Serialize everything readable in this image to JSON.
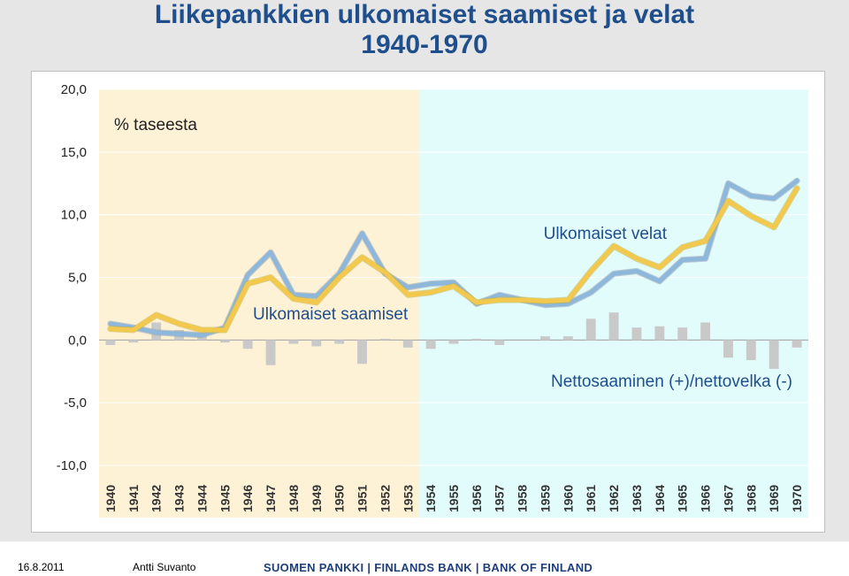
{
  "title": {
    "line1": "Liikepankkien ulkomaiset saamiset ja velat",
    "line2": "1940-1970"
  },
  "footer": {
    "date": "16.8.2011",
    "author": "Antti Suvanto",
    "bank": "SUOMEN PANKKI | FINLANDS BANK | BANK OF FINLAND"
  },
  "chart_data": {
    "type": "line",
    "unit_label": "% taseesta",
    "x": [
      "1940",
      "1941",
      "1942",
      "1943",
      "1944",
      "1945",
      "1946",
      "1947",
      "1948",
      "1949",
      "1950",
      "1951",
      "1952",
      "1953",
      "1954",
      "1955",
      "1956",
      "1957",
      "1958",
      "1959",
      "1960",
      "1961",
      "1962",
      "1963",
      "1964",
      "1965",
      "1966",
      "1967",
      "1968",
      "1969",
      "1970"
    ],
    "ylim": [
      -10,
      20
    ],
    "yticks": [
      "20,0",
      "15,0",
      "10,0",
      "5,0",
      "0,0",
      "-5,0",
      "-10,0"
    ],
    "ytick_values": [
      20,
      15,
      10,
      5,
      0,
      -5,
      -10
    ],
    "shaded_periods": [
      {
        "from": "1940",
        "to": "1953",
        "color": "#fdf2d6"
      },
      {
        "from": "1954",
        "to": "1970",
        "color": "#e2fbfb"
      }
    ],
    "series": [
      {
        "name": "Ulkomaiset velat",
        "kind": "line",
        "color": "#8db8dc",
        "values": [
          1.3,
          1.0,
          0.6,
          0.5,
          0.4,
          1.0,
          5.2,
          7.0,
          3.6,
          3.5,
          5.3,
          8.5,
          5.3,
          4.2,
          4.5,
          4.6,
          2.9,
          3.6,
          3.2,
          2.8,
          2.9,
          3.8,
          5.3,
          5.5,
          4.7,
          6.4,
          6.5,
          12.5,
          11.5,
          11.3,
          12.7
        ]
      },
      {
        "name": "Ulkomaiset saamiset",
        "kind": "line",
        "color": "#f2c94c",
        "values": [
          0.9,
          0.8,
          2.0,
          1.3,
          0.8,
          0.8,
          4.5,
          5.0,
          3.3,
          3.0,
          5.0,
          6.6,
          5.4,
          3.6,
          3.8,
          4.3,
          3.0,
          3.2,
          3.2,
          3.1,
          3.2,
          5.5,
          7.5,
          6.5,
          5.8,
          7.4,
          7.9,
          11.1,
          9.9,
          9.0,
          12.1
        ]
      },
      {
        "name": "Nettosaaminen (+)/nettovelka (-)",
        "kind": "bar",
        "color": "#c9c9c9",
        "values": [
          -0.4,
          -0.2,
          1.4,
          0.8,
          0.4,
          -0.2,
          -0.7,
          -2.0,
          -0.3,
          -0.5,
          -0.3,
          -1.9,
          0.1,
          -0.6,
          -0.7,
          -0.3,
          0.1,
          -0.4,
          0.0,
          0.3,
          0.3,
          1.7,
          2.2,
          1.0,
          1.1,
          1.0,
          1.4,
          -1.4,
          -1.6,
          -2.3,
          -0.6
        ]
      }
    ],
    "annotations": [
      {
        "text": "% taseesta",
        "color": "#222222"
      },
      {
        "text": "Ulkomaiset velat",
        "color": "#1f4e8c"
      },
      {
        "text": "Ulkomaiset saamiset",
        "color": "#1f4e8c"
      },
      {
        "text": "Nettosaaminen (+)/nettovelka (-)",
        "color": "#1f4e8c"
      }
    ],
    "grid": true,
    "legend": "none"
  }
}
